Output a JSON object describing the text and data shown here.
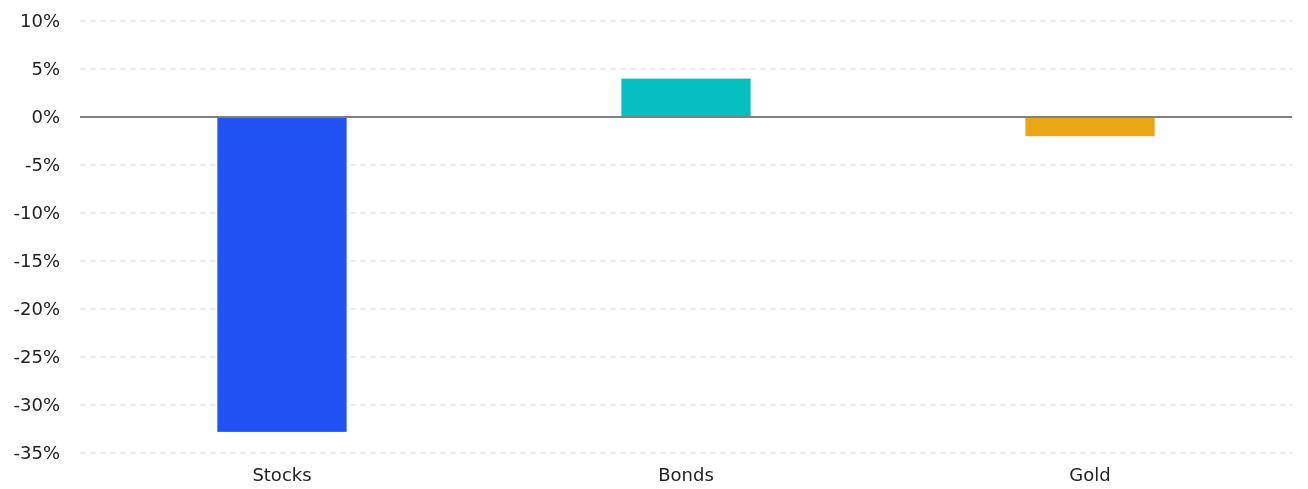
{
  "chart_data": {
    "type": "bar",
    "categories": [
      "Stocks",
      "Bonds",
      "Gold"
    ],
    "values": [
      -32.8,
      4.0,
      -2.0
    ],
    "colors": [
      "#2152f3",
      "#06bfc1",
      "#eaa715"
    ],
    "ylim": [
      -35,
      10
    ],
    "yticks": [
      {
        "value": 10,
        "label": "10%"
      },
      {
        "value": 5,
        "label": "5%"
      },
      {
        "value": 0,
        "label": "0%"
      },
      {
        "value": -5,
        "label": "-5%"
      },
      {
        "value": -10,
        "label": "-10%"
      },
      {
        "value": -15,
        "label": "-15%"
      },
      {
        "value": -20,
        "label": "-20%"
      },
      {
        "value": -25,
        "label": "-25%"
      },
      {
        "value": -30,
        "label": "-30%"
      },
      {
        "value": -35,
        "label": "-35%"
      }
    ],
    "grid": "y"
  }
}
